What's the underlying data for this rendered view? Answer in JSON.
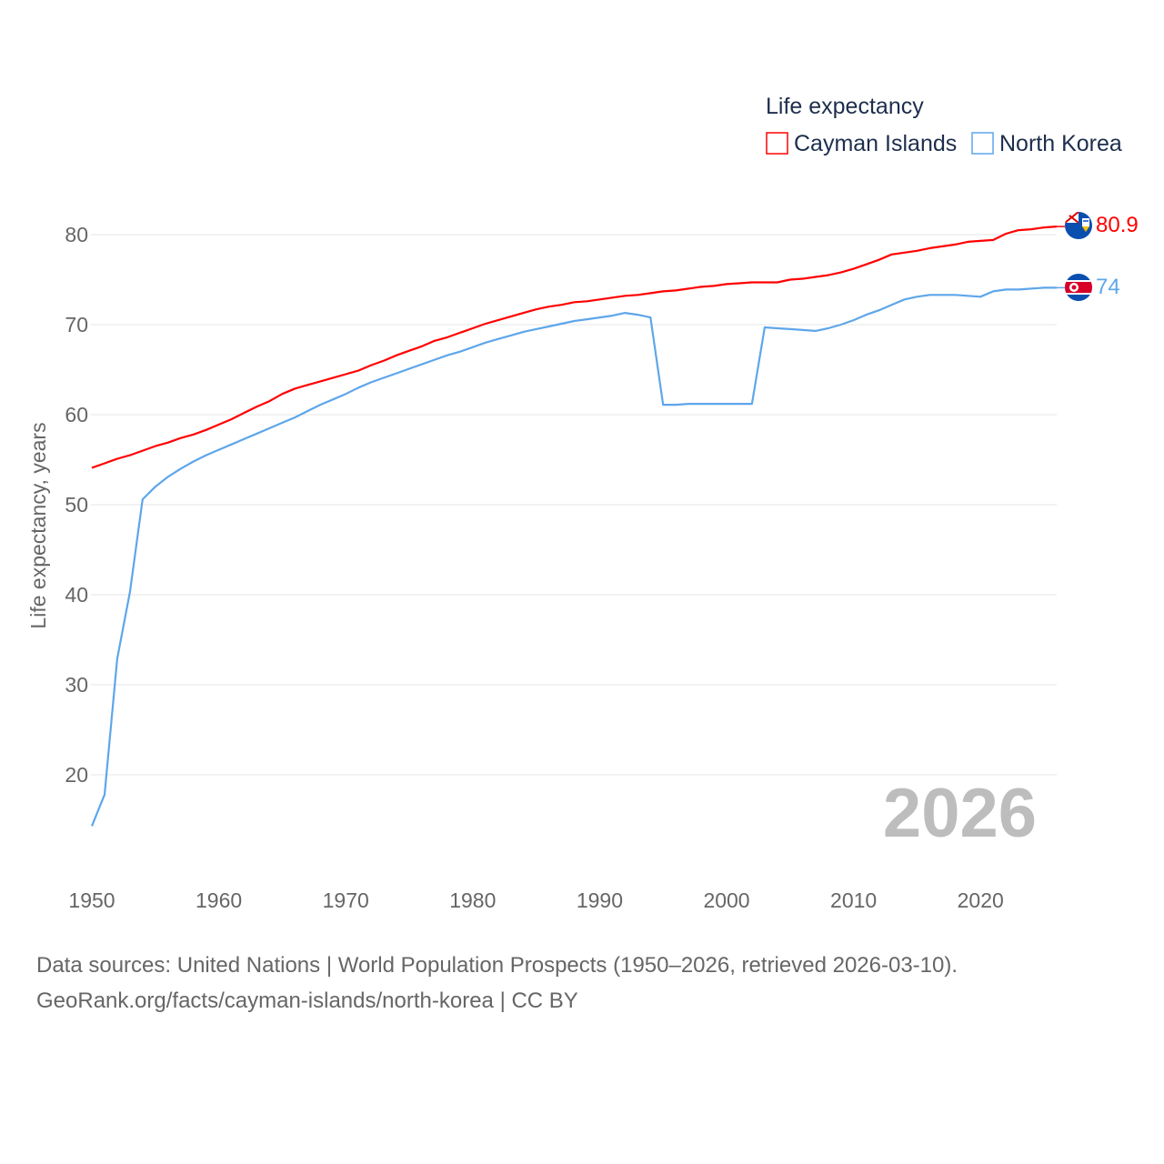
{
  "chart_data": {
    "type": "line",
    "title": "",
    "xlabel": "",
    "ylabel": "Life expectancy, years",
    "xlim": [
      1950,
      2026
    ],
    "ylim": [
      12,
      84
    ],
    "x_ticks": [
      1950,
      1960,
      1970,
      1980,
      1990,
      2000,
      2010,
      2020
    ],
    "y_ticks": [
      20,
      30,
      40,
      50,
      60,
      70,
      80
    ],
    "grid": true,
    "legend": {
      "title": "Life expectancy",
      "placement": "top-right"
    },
    "year_watermark": "2026",
    "x": [
      1950,
      1951,
      1952,
      1953,
      1954,
      1955,
      1956,
      1957,
      1958,
      1959,
      1960,
      1961,
      1962,
      1963,
      1964,
      1965,
      1966,
      1967,
      1968,
      1969,
      1970,
      1971,
      1972,
      1973,
      1974,
      1975,
      1976,
      1977,
      1978,
      1979,
      1980,
      1981,
      1982,
      1983,
      1984,
      1985,
      1986,
      1987,
      1988,
      1989,
      1990,
      1991,
      1992,
      1993,
      1994,
      1995,
      1996,
      1997,
      1998,
      1999,
      2000,
      2001,
      2002,
      2003,
      2004,
      2005,
      2006,
      2007,
      2008,
      2009,
      2010,
      2011,
      2012,
      2013,
      2014,
      2015,
      2016,
      2017,
      2018,
      2019,
      2020,
      2021,
      2022,
      2023,
      2024,
      2025,
      2026
    ],
    "series": [
      {
        "name": "Cayman Islands",
        "color": "#ff0000",
        "end_label": "80.9",
        "flag": "cayman-islands-flag",
        "values": [
          54.1,
          54.6,
          55.1,
          55.5,
          56.0,
          56.5,
          56.9,
          57.4,
          57.8,
          58.3,
          58.9,
          59.5,
          60.2,
          60.9,
          61.5,
          62.3,
          62.9,
          63.3,
          63.7,
          64.1,
          64.5,
          64.9,
          65.5,
          66.0,
          66.6,
          67.1,
          67.6,
          68.2,
          68.6,
          69.1,
          69.6,
          70.1,
          70.5,
          70.9,
          71.3,
          71.7,
          72.0,
          72.2,
          72.5,
          72.6,
          72.8,
          73.0,
          73.2,
          73.3,
          73.5,
          73.7,
          73.8,
          74.0,
          74.2,
          74.3,
          74.5,
          74.6,
          74.7,
          74.7,
          74.7,
          75.0,
          75.1,
          75.3,
          75.5,
          75.8,
          76.2,
          76.7,
          77.2,
          77.8,
          78.0,
          78.2,
          78.5,
          78.7,
          78.9,
          79.2,
          79.3,
          79.4,
          80.1,
          80.5,
          80.6,
          80.8,
          80.9
        ]
      },
      {
        "name": "North Korea",
        "color": "#5ea6ea",
        "end_label": "74",
        "flag": "north-korea-flag",
        "values": [
          14.3,
          17.8,
          32.9,
          40.3,
          50.6,
          52.0,
          53.1,
          54.0,
          54.8,
          55.5,
          56.1,
          56.7,
          57.3,
          57.9,
          58.5,
          59.1,
          59.7,
          60.4,
          61.1,
          61.7,
          62.3,
          63.0,
          63.6,
          64.1,
          64.6,
          65.1,
          65.6,
          66.1,
          66.6,
          67.0,
          67.5,
          68.0,
          68.4,
          68.8,
          69.2,
          69.5,
          69.8,
          70.1,
          70.4,
          70.6,
          70.8,
          71.0,
          71.3,
          71.1,
          70.8,
          61.1,
          61.1,
          61.2,
          61.2,
          61.2,
          61.2,
          61.2,
          61.2,
          69.7,
          69.6,
          69.5,
          69.4,
          69.3,
          69.6,
          70.0,
          70.5,
          71.1,
          71.6,
          72.2,
          72.8,
          73.1,
          73.3,
          73.3,
          73.3,
          73.2,
          73.1,
          73.7,
          73.9,
          73.9,
          74.0,
          74.1,
          74.1
        ]
      }
    ]
  },
  "footer": {
    "line1": "Data sources: United Nations | World Population Prospects (1950–2026, retrieved 2026-03-10).",
    "line2": "GeoRank.org/facts/cayman-islands/north-korea | CC BY"
  }
}
